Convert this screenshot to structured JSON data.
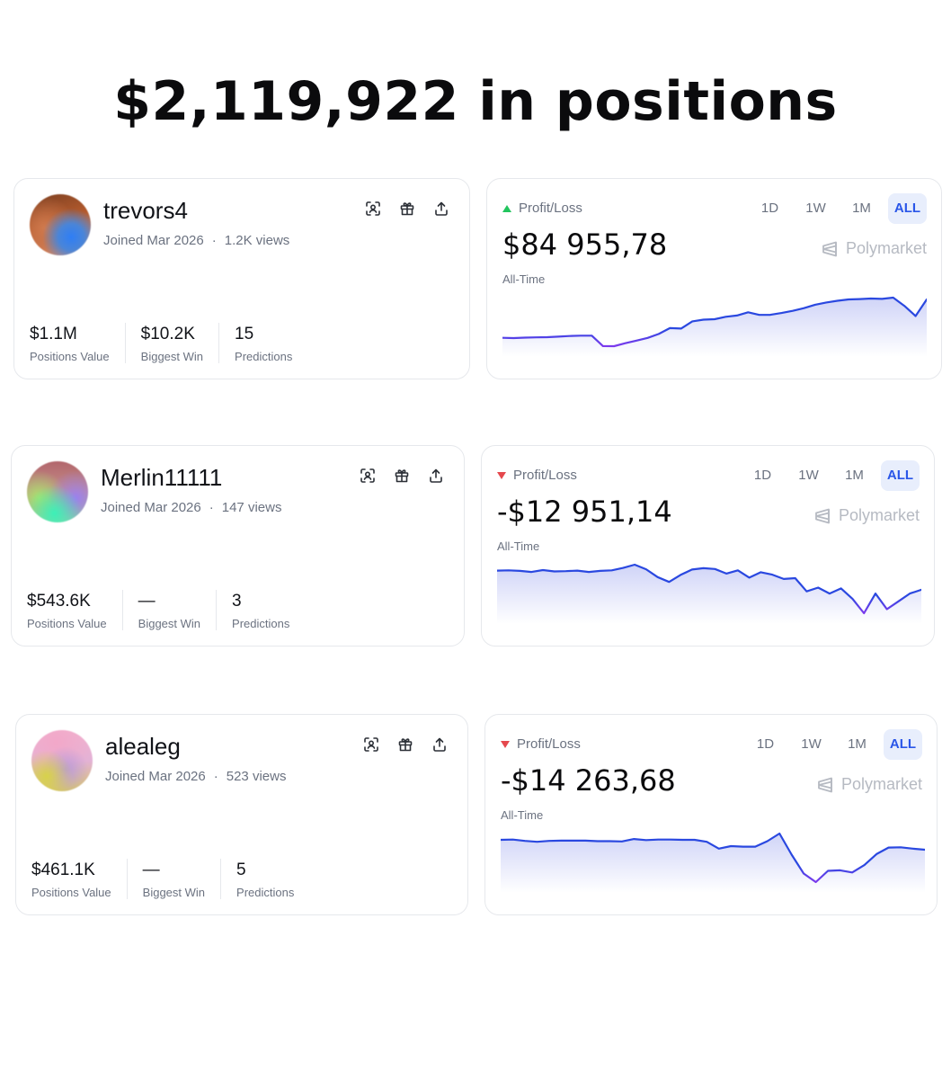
{
  "headline": "$2,119,922 in positions",
  "colors": {
    "line": "#2a48e0",
    "line_dip": "#7c3aed",
    "fill": "#c7ccf6",
    "up": "#22c55e",
    "down": "#e5484d",
    "accent_bg": "#e8eefc"
  },
  "icons": [
    "scan-face-icon",
    "gift-icon",
    "share-icon",
    "polymarket-logo-icon"
  ],
  "rows": [
    {
      "profile": {
        "username": "trevors4",
        "joined": "Joined Mar 2026",
        "separator": "·",
        "views": "1.2K views",
        "stats": [
          {
            "value": "$1.1M",
            "label": "Positions Value"
          },
          {
            "value": "$10.2K",
            "label": "Biggest Win"
          },
          {
            "value": "15",
            "label": "Predictions"
          }
        ]
      },
      "pnl": {
        "label": "Profit/Loss",
        "direction": "up",
        "value": "$84 955,78",
        "period_label": "All-Time",
        "ranges": [
          "1D",
          "1W",
          "1M",
          "ALL"
        ],
        "active_range": "ALL",
        "brand": "Polymarket",
        "series": [
          52.5,
          52.3,
          52.6,
          52.8,
          53.0,
          53.4,
          53.9,
          54.2,
          54.2,
          46.0,
          45.9,
          48.2,
          50.3,
          52.4,
          55.5,
          60.1,
          59.8,
          65.4,
          66.8,
          67.1,
          69.0,
          70.0,
          72.6,
          70.5,
          70.6,
          72.0,
          73.7,
          75.8,
          78.5,
          80.3,
          81.6,
          82.7,
          83.0,
          83.4,
          83.1,
          84.1,
          77.6,
          69.6,
          82.7
        ]
      }
    },
    {
      "profile": {
        "username": "Merlin11111",
        "joined": "Joined Mar 2026",
        "separator": "·",
        "views": "147 views",
        "stats": [
          {
            "value": "$543.6K",
            "label": "Positions Value"
          },
          {
            "value": "—",
            "label": "Biggest Win"
          },
          {
            "value": "3",
            "label": "Predictions"
          }
        ]
      },
      "pnl": {
        "label": "Profit/Loss",
        "direction": "down",
        "value": "-$12 951,14",
        "period_label": "All-Time",
        "ranges": [
          "1D",
          "1W",
          "1M",
          "ALL"
        ],
        "active_range": "ALL",
        "brand": "Polymarket",
        "series": [
          -3.3,
          -3.2,
          -3.4,
          -3.8,
          -3.1,
          -3.6,
          -3.5,
          -3.3,
          -3.8,
          -3.4,
          -3.2,
          -2.3,
          -1.1,
          -2.8,
          -5.7,
          -7.5,
          -4.9,
          -2.9,
          -2.4,
          -2.7,
          -4.4,
          -3.2,
          -5.9,
          -3.9,
          -4.8,
          -6.4,
          -6.1,
          -11.0,
          -9.6,
          -11.8,
          -9.9,
          -13.8,
          -19.1,
          -11.8,
          -17.6,
          -14.7,
          -11.8,
          -10.4
        ]
      }
    },
    {
      "profile": {
        "username": "alealeg",
        "joined": "Joined Mar 2026",
        "separator": "·",
        "views": "523 views",
        "stats": [
          {
            "value": "$461.1K",
            "label": "Positions Value"
          },
          {
            "value": "—",
            "label": "Biggest Win"
          },
          {
            "value": "5",
            "label": "Predictions"
          }
        ]
      },
      "pnl": {
        "label": "Profit/Loss",
        "direction": "down",
        "value": "-$14 263,68",
        "period_label": "All-Time",
        "ranges": [
          "1D",
          "1W",
          "1M",
          "ALL"
        ],
        "active_range": "ALL",
        "brand": "Polymarket",
        "series": [
          -2.7,
          -2.6,
          -3.1,
          -3.4,
          -3.1,
          -3.0,
          -3.0,
          -3.0,
          -3.2,
          -3.2,
          -3.3,
          -2.4,
          -2.8,
          -2.6,
          -2.6,
          -2.7,
          -2.7,
          -3.4,
          -5.9,
          -5.0,
          -5.2,
          -5.2,
          -3.2,
          -0.4,
          -8.1,
          -15.0,
          -18.1,
          -14.0,
          -13.8,
          -14.6,
          -11.9,
          -7.9,
          -5.5,
          -5.4,
          -5.9,
          -6.3
        ]
      }
    }
  ]
}
